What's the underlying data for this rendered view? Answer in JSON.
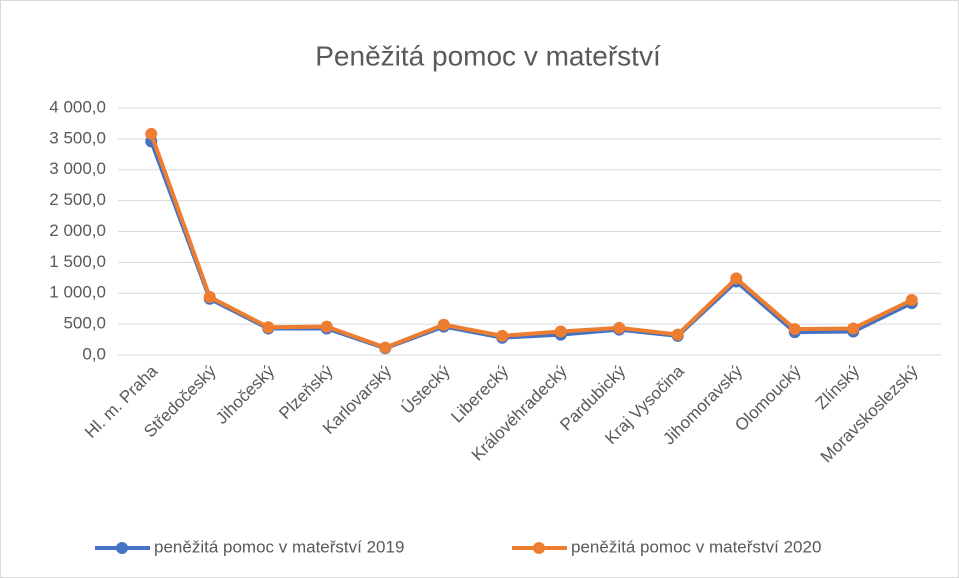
{
  "chart_data": {
    "type": "line",
    "title": "Peněžitá pomoc v mateřství",
    "categories": [
      "Hl. m. Praha",
      "Středočeský",
      "Jihočeský",
      "Plzeňský",
      "Karlovarský",
      "Ústecký",
      "Liberecký",
      "Královéhradecký",
      "Pardubický",
      "Kraj Vysočina",
      "Jihomoravský",
      "Olomoucký",
      "Zlínský",
      "Moravskoslezský"
    ],
    "series": [
      {
        "name": "peněžitá pomoc v mateřství 2019",
        "color": "#4472c4",
        "values": [
          3460,
          910,
          430,
          430,
          110,
          460,
          280,
          330,
          410,
          310,
          1190,
          370,
          380,
          840
        ]
      },
      {
        "name": "peněžitá pomoc v mateřství 2020",
        "color": "#ed7d31",
        "values": [
          3580,
          940,
          450,
          460,
          120,
          490,
          310,
          380,
          440,
          330,
          1240,
          420,
          430,
          890
        ]
      }
    ],
    "ylim": [
      0,
      4000
    ],
    "yticks": [
      {
        "value": 0,
        "label": "0,0"
      },
      {
        "value": 500,
        "label": "500,0"
      },
      {
        "value": 1000,
        "label": "1 000,0"
      },
      {
        "value": 1500,
        "label": "1 500,0"
      },
      {
        "value": 2000,
        "label": "2 000,0"
      },
      {
        "value": 2500,
        "label": "2 500,0"
      },
      {
        "value": 3000,
        "label": "3 000,0"
      },
      {
        "value": 3500,
        "label": "3 500,0"
      },
      {
        "value": 4000,
        "label": "4 000,0"
      }
    ],
    "grid": true,
    "legend": "bottom"
  }
}
